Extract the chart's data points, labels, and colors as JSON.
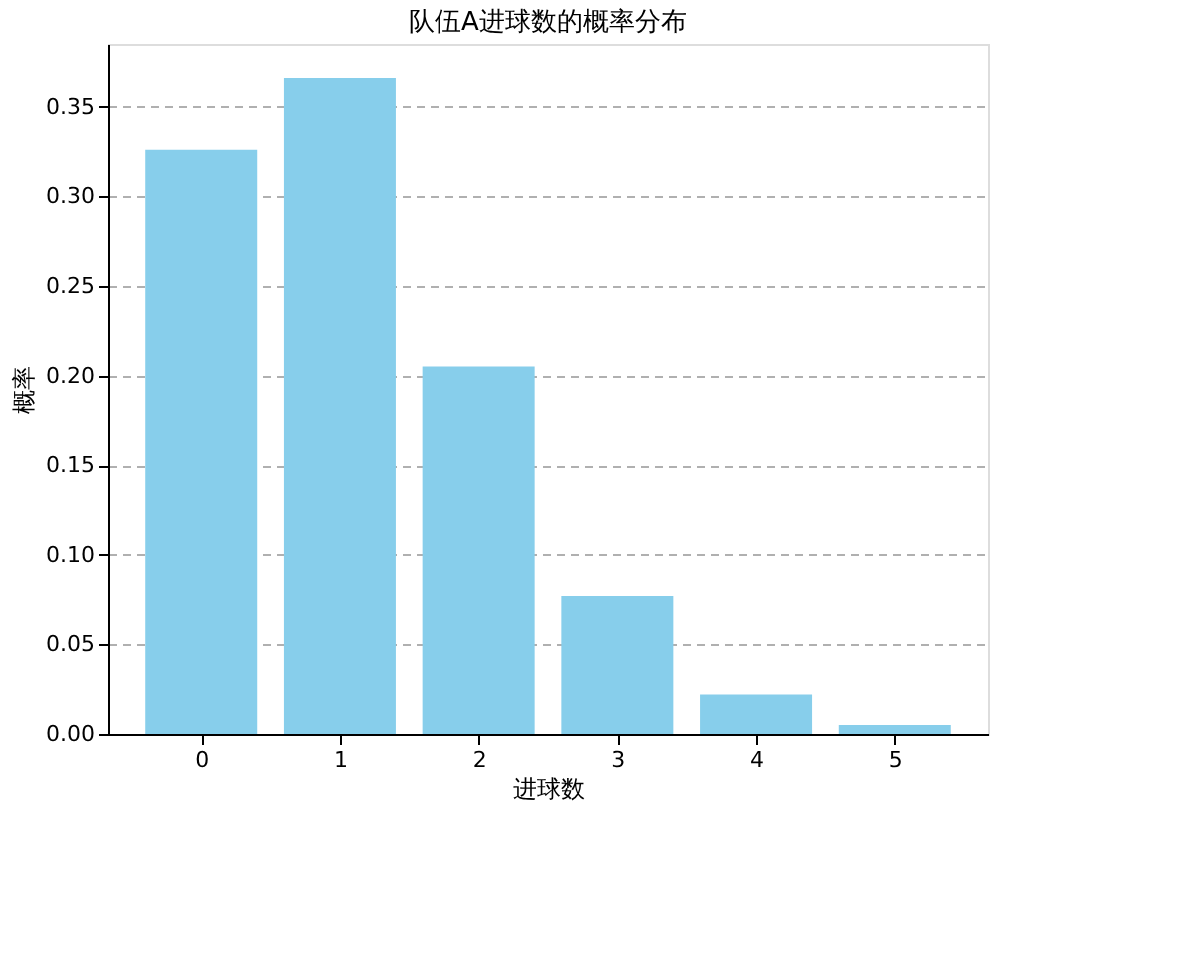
{
  "chart_data": {
    "type": "bar",
    "title": "队伍A进球数的概率分布",
    "xlabel": "进球数",
    "ylabel": "概率",
    "categories": [
      "0",
      "1",
      "2",
      "3",
      "4",
      "5"
    ],
    "values": [
      0.326,
      0.366,
      0.205,
      0.077,
      0.022,
      0.005
    ],
    "color": "#87ceeb",
    "ylim": [
      0,
      0.385
    ],
    "yticks": [
      {
        "value": 0,
        "label": "0.00"
      },
      {
        "value": 0.05,
        "label": "0.05"
      },
      {
        "value": 0.1,
        "label": "0.10"
      },
      {
        "value": 0.15,
        "label": "0.15"
      },
      {
        "value": 0.2,
        "label": "0.20"
      },
      {
        "value": 0.25,
        "label": "0.25"
      },
      {
        "value": 0.3,
        "label": "0.30"
      },
      {
        "value": 0.35,
        "label": "0.35"
      }
    ],
    "grid": "y",
    "line_style": "dashed"
  }
}
